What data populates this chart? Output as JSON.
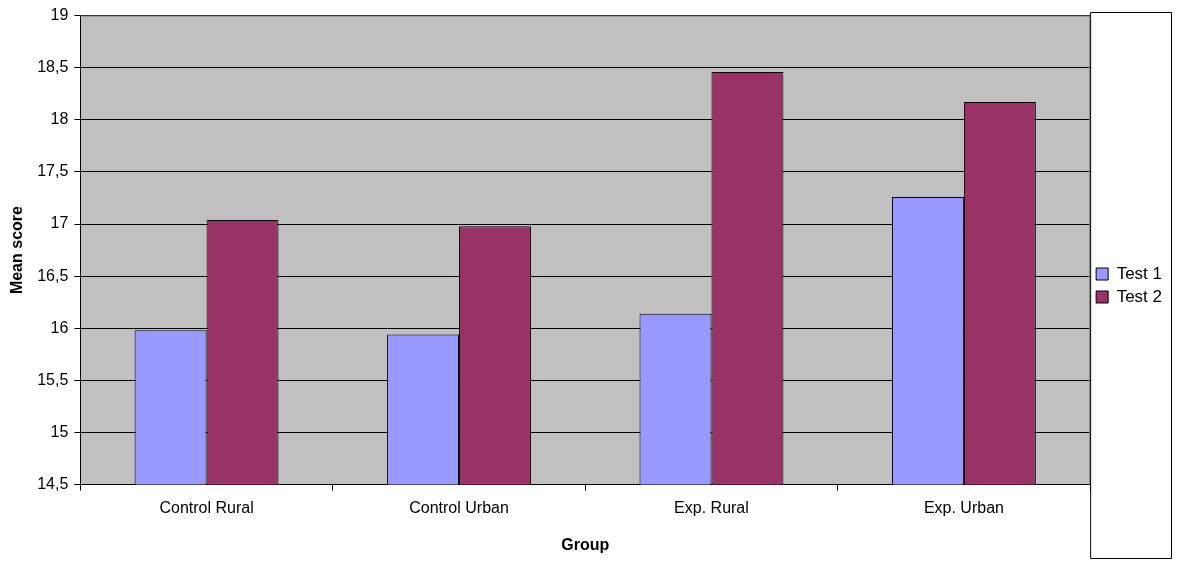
{
  "chart_data": {
    "type": "bar",
    "xlabel": "Group",
    "ylabel": "Mean score",
    "categories": [
      "Control Rural",
      "Control Urban",
      "Exp. Rural",
      "Exp. Urban"
    ],
    "series": [
      {
        "name": "Test 1",
        "color": "#9999ff",
        "values": [
          15.98,
          15.94,
          16.14,
          17.26
        ]
      },
      {
        "name": "Test 2",
        "color": "#993366",
        "values": [
          17.04,
          16.98,
          18.46,
          18.17
        ]
      }
    ],
    "ylim": [
      14.5,
      19
    ],
    "yticks": [
      {
        "value": 14.5,
        "label": "14,5"
      },
      15,
      {
        "value": 15.5,
        "label": "15,5"
      },
      16,
      {
        "value": 16.5,
        "label": "16,5"
      },
      17,
      {
        "value": 17.5,
        "label": "17,5"
      },
      18,
      {
        "value": 18.5,
        "label": "18,5"
      },
      19
    ],
    "grid": "y",
    "legend": "right"
  }
}
